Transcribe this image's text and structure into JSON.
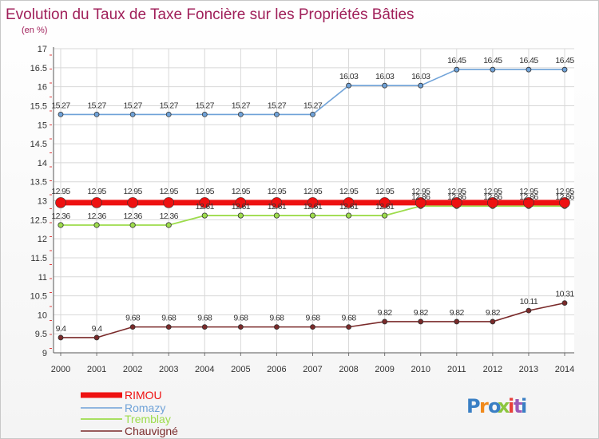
{
  "chart_data": {
    "type": "line",
    "title": "Evolution du Taux de Taxe Foncière sur les Propriétés Bâties",
    "subtitle": "(en %)",
    "x": [
      "2000",
      "2001",
      "2002",
      "2003",
      "2004",
      "2005",
      "2006",
      "2007",
      "2008",
      "2009",
      "2010",
      "2011",
      "2012",
      "2013",
      "2014"
    ],
    "y_ticks": [
      "9",
      "9.5",
      "10",
      "10.5",
      "11",
      "11.5",
      "12",
      "12.5",
      "13",
      "13.5",
      "14",
      "14.5",
      "15",
      "15.5",
      "16",
      "16.5",
      "17"
    ],
    "ylim": [
      9,
      17
    ],
    "grid": true,
    "series": [
      {
        "name": "RIMOU",
        "color": "#ee1111",
        "values": [
          12.95,
          12.95,
          12.95,
          12.95,
          12.95,
          12.95,
          12.95,
          12.95,
          12.95,
          12.95,
          12.95,
          12.95,
          12.95,
          12.95,
          12.95
        ],
        "labels": [
          "12.95",
          "12.95",
          "12.95",
          "12.95",
          "12.95",
          "12.95",
          "12.95",
          "12.95",
          "12.95",
          "12.95",
          "12.95",
          "12.95",
          "12.95",
          "12.95",
          "12.95"
        ]
      },
      {
        "name": "Romazy",
        "color": "#6fa2d8",
        "values": [
          15.27,
          15.27,
          15.27,
          15.27,
          15.27,
          15.27,
          15.27,
          15.27,
          16.03,
          16.03,
          16.03,
          16.45,
          16.45,
          16.45,
          16.45
        ],
        "labels": [
          "15.27",
          "15.27",
          "15.27",
          "15.27",
          "15.27",
          "15.27",
          "15.27",
          "15.27",
          "16.03",
          "16.03",
          "16.03",
          "16.45",
          "16.45",
          "16.45",
          "16.45"
        ]
      },
      {
        "name": "Tremblay",
        "color": "#9ddc4c",
        "values": [
          12.36,
          12.36,
          12.36,
          12.36,
          12.61,
          12.61,
          12.61,
          12.61,
          12.61,
          12.61,
          12.86,
          12.86,
          12.86,
          12.86,
          12.86
        ],
        "labels": [
          "12.36",
          "12.36",
          "12.36",
          "12.36",
          "12.61",
          "12.61",
          "12.61",
          "12.61",
          "12.61",
          "12.61",
          "12.86",
          "12.86",
          "12.86",
          "12.86",
          "12.86"
        ]
      },
      {
        "name": "Chauvigné",
        "color": "#7a2a2a",
        "values": [
          9.4,
          9.4,
          9.68,
          9.68,
          9.68,
          9.68,
          9.68,
          9.68,
          9.68,
          9.82,
          9.82,
          9.82,
          9.82,
          10.11,
          10.31
        ],
        "labels": [
          "9.4",
          "9.4",
          "9.68",
          "9.68",
          "9.68",
          "9.68",
          "9.68",
          "9.68",
          "9.68",
          "9.82",
          "9.82",
          "9.82",
          "9.82",
          "10.11",
          "10.31"
        ]
      }
    ]
  },
  "legend": [
    "RIMOU",
    "Romazy",
    "Tremblay",
    "Chauvigné"
  ],
  "logo": {
    "text": "Proxiti",
    "colors": [
      "#3a7fc4",
      "#f08a1c",
      "#3a7fc4",
      "#8cc63f",
      "#e8403a",
      "#9b59b6",
      "#3a7fc4"
    ]
  }
}
